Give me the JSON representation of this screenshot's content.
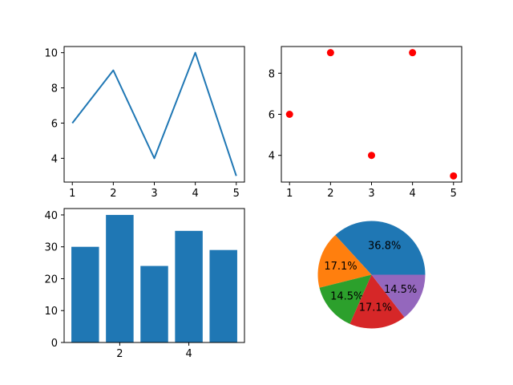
{
  "chart_data": [
    {
      "type": "line",
      "x": [
        1,
        2,
        3,
        4,
        5
      ],
      "series": [
        {
          "values": [
            6,
            9,
            4,
            10,
            3
          ],
          "color": "#1f77b4"
        }
      ],
      "xlim": [
        0.8,
        5.2
      ],
      "ylim": [
        2.65,
        10.35
      ],
      "xticks": [
        1,
        2,
        3,
        4,
        5
      ],
      "yticks": [
        4,
        6,
        8,
        10
      ],
      "title": "",
      "xlabel": "",
      "ylabel": "",
      "grid": false
    },
    {
      "type": "scatter",
      "x": [
        1,
        2,
        3,
        4,
        5
      ],
      "series": [
        {
          "values": [
            6,
            9,
            4,
            9,
            3
          ],
          "color": "#ff0000"
        }
      ],
      "xlim": [
        0.8,
        5.2
      ],
      "ylim": [
        2.7,
        9.3
      ],
      "xticks": [
        1,
        2,
        3,
        4,
        5
      ],
      "yticks": [
        4,
        6,
        8
      ],
      "title": "",
      "xlabel": "",
      "ylabel": "",
      "grid": false
    },
    {
      "type": "bar",
      "x": [
        1,
        2,
        3,
        4,
        5
      ],
      "series": [
        {
          "values": [
            30,
            40,
            24,
            35,
            29
          ],
          "color": "#1f77b4"
        }
      ],
      "xlim": [
        0.39,
        5.61
      ],
      "ylim": [
        0,
        42
      ],
      "xticks": [
        2,
        4
      ],
      "yticks": [
        0,
        10,
        20,
        30,
        40
      ],
      "title": "",
      "xlabel": "",
      "ylabel": "",
      "grid": false
    },
    {
      "type": "pie",
      "values": [
        36.8,
        17.1,
        14.5,
        17.1,
        14.5
      ],
      "labels": [
        "36.8%",
        "17.1%",
        "14.5%",
        "17.1%",
        "14.5%"
      ],
      "colors": [
        "#1f77b4",
        "#ff7f0e",
        "#2ca02c",
        "#d62728",
        "#9467bd"
      ],
      "title": ""
    }
  ]
}
